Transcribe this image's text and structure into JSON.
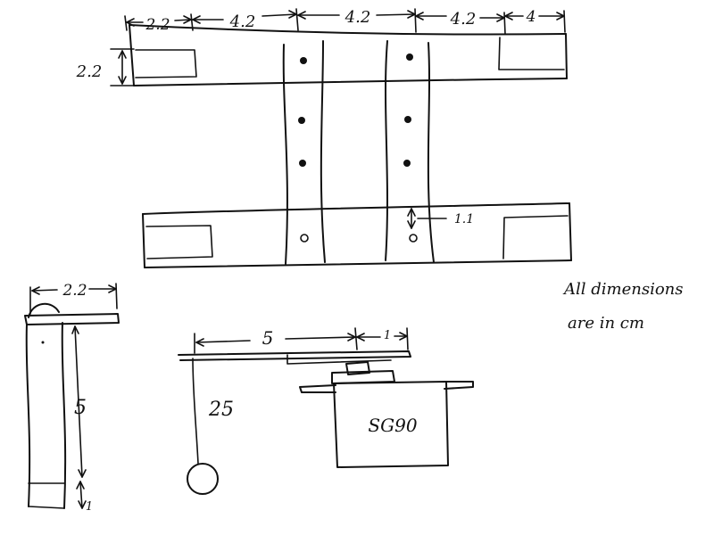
{
  "note": {
    "line1": "All dimensions",
    "line2": "are in cm"
  },
  "top_view": {
    "dims_top": [
      "2.2",
      "4.2",
      "4.2",
      "4.2",
      "4"
    ],
    "dim_left_height": "2.2",
    "dim_hole_offset": "1.1"
  },
  "side_view": {
    "dim_width": "2.2",
    "dim_height": "5",
    "dim_bottom": "1"
  },
  "arm_view": {
    "dim_arm": "5",
    "dim_end": "1",
    "dim_string": "25",
    "servo_label": "SG90"
  }
}
